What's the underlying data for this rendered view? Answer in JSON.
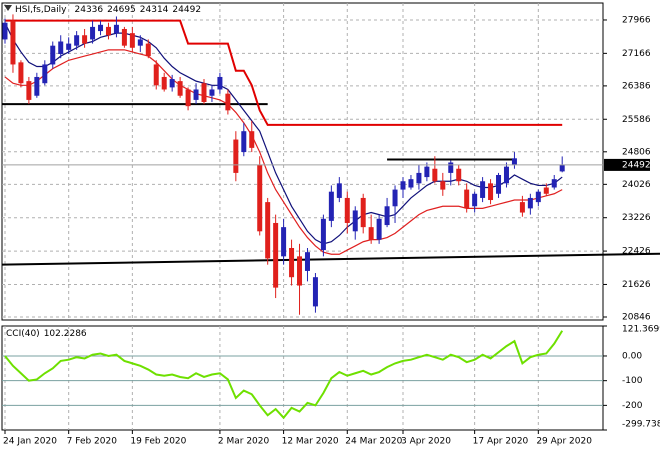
{
  "chart_data": [
    {
      "type": "candlestick",
      "title": "HSI,fs,Daily",
      "categories": [
        "24 Jan 2020",
        null,
        null,
        null,
        null,
        null,
        null,
        null,
        "7 Feb 2020",
        null,
        null,
        null,
        null,
        null,
        null,
        null,
        "19 Feb 2020",
        null,
        null,
        null,
        null,
        null,
        null,
        null,
        null,
        null,
        null,
        "2 Mar 2020",
        null,
        null,
        null,
        null,
        null,
        null,
        null,
        "12 Mar 2020",
        null,
        null,
        null,
        null,
        null,
        null,
        null,
        "24 Mar 2020",
        null,
        null,
        null,
        null,
        null,
        null,
        "3 Apr 2020",
        null,
        null,
        null,
        null,
        null,
        null,
        null,
        null,
        "17 Apr 2020",
        null,
        null,
        null,
        null,
        null,
        null,
        null,
        "29 Apr 2020",
        null,
        null,
        null
      ],
      "open": [
        27500,
        27950,
        26950,
        26500,
        26150,
        26450,
        26900,
        27150,
        27250,
        27350,
        27600,
        27500,
        27700,
        27800,
        27650,
        27750,
        27650,
        27350,
        27400,
        26900,
        26600,
        26350,
        26500,
        26300,
        26050,
        26450,
        26150,
        26300,
        26200,
        25100,
        24800,
        25300,
        24500,
        23600,
        23100,
        22300,
        22500,
        22300,
        21950,
        21100,
        22450,
        23150,
        23700,
        23700,
        22900,
        23700,
        23000,
        22700,
        23050,
        23500,
        23900,
        23950,
        24050,
        24200,
        24400,
        24100,
        24300,
        24400,
        23900,
        23500,
        23700,
        24050,
        23800,
        24050,
        24500,
        23600,
        23450,
        23600,
        23950,
        23950,
        24336
      ],
      "high": [
        28000,
        28100,
        27000,
        26600,
        26700,
        27000,
        27450,
        27600,
        27550,
        27700,
        27750,
        27950,
        27950,
        27900,
        28050,
        27800,
        27800,
        27600,
        27500,
        27000,
        26700,
        26650,
        26600,
        26350,
        26450,
        26550,
        26400,
        26700,
        26300,
        25300,
        25500,
        25550,
        24700,
        23700,
        23300,
        23200,
        22700,
        22600,
        22500,
        21900,
        23300,
        24000,
        24200,
        23850,
        23500,
        23800,
        23300,
        23300,
        23700,
        24000,
        24200,
        24250,
        24500,
        24550,
        24700,
        24300,
        24600,
        24500,
        24050,
        23850,
        24200,
        24150,
        24300,
        24550,
        24800,
        23750,
        23800,
        23900,
        24050,
        24250,
        24695
      ],
      "low": [
        27400,
        26700,
        26350,
        25950,
        26100,
        26400,
        26800,
        27050,
        27150,
        27250,
        27300,
        27400,
        27600,
        27500,
        27550,
        27300,
        27200,
        27200,
        27050,
        26300,
        26250,
        26250,
        26100,
        25800,
        25950,
        25950,
        26000,
        26200,
        25700,
        24100,
        24700,
        24800,
        22800,
        22100,
        21300,
        22100,
        21600,
        20900,
        21700,
        20950,
        22300,
        23000,
        23600,
        22850,
        22700,
        22850,
        22600,
        22600,
        23000,
        23100,
        23700,
        23900,
        23900,
        24100,
        24050,
        23750,
        24000,
        24000,
        23350,
        23350,
        23600,
        23550,
        23700,
        23950,
        24400,
        23250,
        23300,
        23500,
        23750,
        23900,
        24314
      ],
      "close": [
        27900,
        26900,
        26450,
        26050,
        26600,
        26900,
        27350,
        27450,
        27400,
        27600,
        27400,
        27800,
        27850,
        27600,
        27850,
        27350,
        27300,
        27500,
        27100,
        26400,
        26300,
        26550,
        26150,
        25900,
        26300,
        26000,
        26300,
        26600,
        25800,
        24300,
        25300,
        24900,
        22900,
        22250,
        21550,
        23000,
        21800,
        21600,
        22400,
        21800,
        23200,
        23850,
        24050,
        23100,
        23400,
        23000,
        22700,
        23200,
        23500,
        23900,
        24100,
        24150,
        24300,
        24450,
        24100,
        23900,
        24550,
        24100,
        23450,
        23800,
        24100,
        23650,
        24250,
        24450,
        24650,
        23350,
        23700,
        23850,
        23800,
        24150,
        24492
      ],
      "up_color": "#2323b4",
      "down_color": "#e0201c",
      "lines": [
        {
          "color": "#10107a",
          "values": [
            27900,
            27500,
            27200,
            26950,
            26850,
            26850,
            26950,
            27100,
            27200,
            27300,
            27400,
            27450,
            27550,
            27600,
            27650,
            27650,
            27600,
            27550,
            27450,
            27300,
            27050,
            26850,
            26700,
            26600,
            26500,
            26450,
            26400,
            26400,
            26300,
            26050,
            25800,
            25550,
            25300,
            24800,
            24300,
            23900,
            23500,
            23200,
            22900,
            22700,
            22600,
            22650,
            22800,
            23000,
            23150,
            23300,
            23350,
            23300,
            23250,
            23300,
            23500,
            23700,
            23850,
            24000,
            24100,
            24100,
            24100,
            24150,
            24100,
            24000,
            23950,
            23950,
            24000,
            24100,
            24250,
            24150,
            24050,
            24000,
            24000,
            24050,
            24200
          ]
        },
        {
          "color": "#e02020",
          "values": [
            26600,
            26450,
            26400,
            26400,
            26500,
            26650,
            26800,
            26900,
            27000,
            27050,
            27100,
            27150,
            27200,
            27250,
            27250,
            27250,
            27200,
            27150,
            27100,
            26950,
            26750,
            26550,
            26400,
            26300,
            26200,
            26150,
            26100,
            26050,
            25950,
            25750,
            25500,
            25200,
            24800,
            24300,
            23900,
            23600,
            23300,
            23000,
            22750,
            22550,
            22400,
            22350,
            22350,
            22450,
            22550,
            22650,
            22700,
            22700,
            22750,
            22850,
            23000,
            23150,
            23300,
            23400,
            23450,
            23500,
            23500,
            23500,
            23450,
            23450,
            23450,
            23500,
            23550,
            23600,
            23650,
            23650,
            23650,
            23700,
            23750,
            23800,
            23900
          ]
        },
        {
          "color": "#e00000",
          "values": [
            27950,
            27950,
            27950,
            27950,
            27950,
            27950,
            27950,
            27950,
            27950,
            27950,
            27950,
            27950,
            27950,
            27950,
            27950,
            27950,
            27950,
            27950,
            27950,
            27950,
            27950,
            27950,
            27950,
            27400,
            27400,
            27400,
            27400,
            27400,
            27400,
            26750,
            26750,
            26400,
            25800,
            25450,
            25450,
            25450,
            25450,
            25450,
            25450,
            25450,
            25450,
            25450,
            25450,
            25450,
            25450,
            25450,
            25450,
            25450,
            25450,
            25450,
            25450,
            25450,
            25450,
            25450,
            25450,
            25450,
            25450,
            25450,
            25450,
            25450,
            25450,
            25450,
            25450,
            25450,
            25450,
            25450,
            25450,
            25450,
            25450,
            25450,
            25450
          ]
        }
      ],
      "levels": [
        {
          "value": 25950,
          "from": 0,
          "to": 33,
          "color": "#000000"
        },
        {
          "value": 24620,
          "from": 48,
          "to": 64,
          "color": "#000000"
        }
      ],
      "trendline": {
        "values": [
          22100,
          22340
        ],
        "color": "#000000"
      },
      "ylim": [
        20774,
        28373
      ],
      "yticks": [
        27966,
        27166,
        26386,
        25586,
        24806,
        24026,
        23226,
        22426,
        21626,
        20846
      ],
      "grid": true
    },
    {
      "type": "line",
      "title": "CCI(40)",
      "color": "#6ee000",
      "values": [
        0,
        -40,
        -70,
        -100,
        -95,
        -70,
        -50,
        -20,
        -15,
        -5,
        -10,
        5,
        10,
        0,
        5,
        -20,
        -30,
        -40,
        -55,
        -75,
        -80,
        -75,
        -85,
        -90,
        -70,
        -85,
        -75,
        -70,
        -95,
        -170,
        -140,
        -155,
        -200,
        -240,
        -215,
        -250,
        -210,
        -225,
        -190,
        -200,
        -150,
        -90,
        -65,
        -80,
        -70,
        -60,
        -75,
        -65,
        -45,
        -30,
        -20,
        -15,
        -5,
        5,
        -5,
        -15,
        5,
        -5,
        -25,
        -15,
        5,
        -10,
        15,
        40,
        60,
        -30,
        -5,
        5,
        10,
        50,
        102.2286
      ],
      "ylim": [
        -299.7384,
        121.3699
      ],
      "yticks": [
        121.3699,
        {
          "value": 0,
          "label": "0.00"
        },
        -100,
        -200,
        -299.7384
      ],
      "grid": true
    }
  ]
}
